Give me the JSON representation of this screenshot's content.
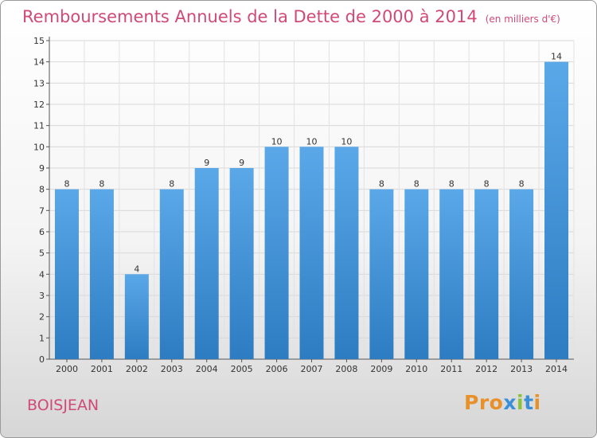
{
  "header": {
    "title": "Remboursements Annuels de la Dette de 2000 à 2014",
    "unit_note": "(en milliers d'€)"
  },
  "footer": {
    "place": "BOISJEAN",
    "logo": "Proxiti"
  },
  "colors": {
    "title": "#d04a76",
    "bar_light": "#5aa8e8",
    "bar_dark": "#2d7cc2",
    "logo_letters": [
      "#e8902a",
      "#e8902a",
      "#e8902a",
      "#3a8fd8",
      "#8ac23a",
      "#3a8fd8",
      "#e8902a"
    ]
  },
  "chart_data": {
    "type": "bar",
    "title": "Remboursements Annuels de la Dette de 2000 à 2014",
    "subtitle": "(en milliers d'€)",
    "categories": [
      "2000",
      "2001",
      "2002",
      "2003",
      "2004",
      "2005",
      "2006",
      "2007",
      "2008",
      "2009",
      "2010",
      "2011",
      "2012",
      "2013",
      "2014"
    ],
    "values": [
      8,
      8,
      4,
      8,
      9,
      9,
      10,
      10,
      10,
      8,
      8,
      8,
      8,
      8,
      14
    ],
    "data_labels": [
      "8",
      "8",
      "4",
      "8",
      "9",
      "9",
      "10",
      "10",
      "10",
      "8",
      "8",
      "8",
      "8",
      "8",
      "14"
    ],
    "ylim": [
      0,
      15
    ],
    "yticks": [
      0,
      1,
      2,
      3,
      4,
      5,
      6,
      7,
      8,
      9,
      10,
      11,
      12,
      13,
      14,
      15
    ],
    "xlabel": "",
    "ylabel": "",
    "grid": true,
    "legend": "none"
  }
}
